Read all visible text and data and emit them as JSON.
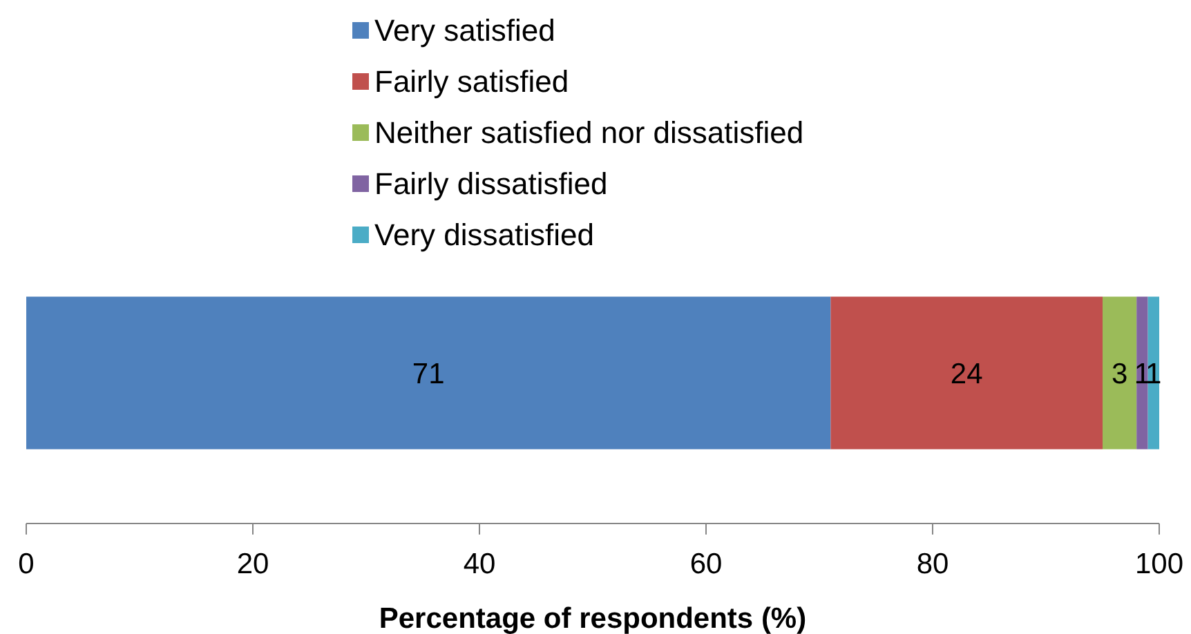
{
  "chart_data": {
    "type": "bar",
    "orientation": "horizontal",
    "stacked": true,
    "categories": [
      null
    ],
    "series": [
      {
        "name": "Very satisfied",
        "color": "#4f81bd",
        "values": [
          71
        ]
      },
      {
        "name": "Fairly satisfied",
        "color": "#c0504d",
        "values": [
          24
        ]
      },
      {
        "name": "Neither satisfied nor dissatisfied",
        "color": "#9bbb59",
        "values": [
          3
        ]
      },
      {
        "name": "Fairly dissatisfied",
        "color": "#8064a2",
        "values": [
          1
        ]
      },
      {
        "name": "Very dissatisfied",
        "color": "#4bacc6",
        "values": [
          1
        ]
      }
    ],
    "xlim": [
      0,
      100
    ],
    "xticks": [
      0,
      20,
      40,
      60,
      80,
      100
    ],
    "xlabel": "Percentage of respondents (%)",
    "data_labels": true,
    "legend": "top"
  }
}
